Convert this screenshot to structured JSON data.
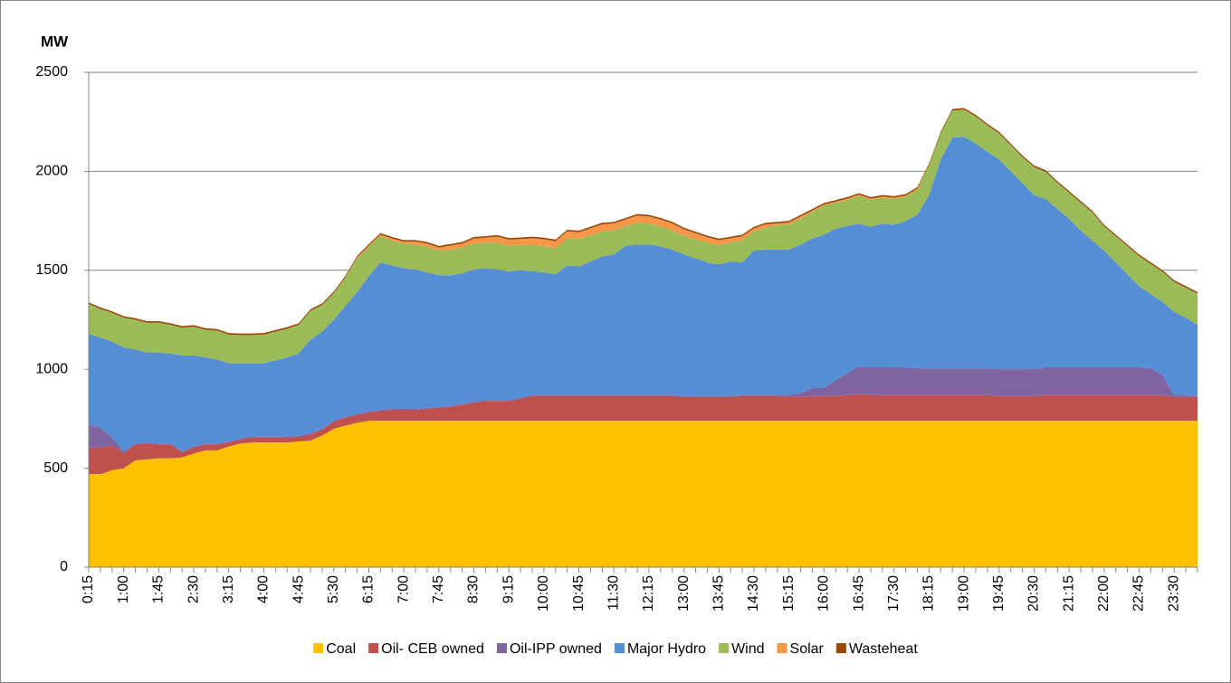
{
  "chart_data": {
    "type": "stacked-area",
    "y_label": "MW",
    "categories": [
      "0:15",
      null,
      null,
      "1:00",
      null,
      null,
      "1:45",
      null,
      null,
      "2:30",
      null,
      null,
      "3:15",
      null,
      null,
      "4:00",
      null,
      null,
      "4:45",
      null,
      null,
      "5:30",
      null,
      null,
      "6:15",
      null,
      null,
      "7:00",
      null,
      null,
      "7:45",
      null,
      null,
      "8:30",
      null,
      null,
      "9:15",
      null,
      null,
      "10:00",
      null,
      null,
      "10:45",
      null,
      null,
      "11:30",
      null,
      null,
      "12:15",
      null,
      null,
      "13:00",
      null,
      null,
      "13:45",
      null,
      null,
      "14:30",
      null,
      null,
      "15:15",
      null,
      null,
      "16:00",
      null,
      null,
      "16:45",
      null,
      null,
      "17:30",
      null,
      null,
      "18:15",
      null,
      null,
      "19:00",
      null,
      null,
      "19:45",
      null,
      null,
      "20:30",
      null,
      null,
      "21:15",
      null,
      null,
      "22:00",
      null,
      null,
      "22:45",
      null,
      null,
      "23:30",
      null,
      null
    ],
    "ylim": [
      0,
      2500
    ],
    "yticks": [
      0,
      500,
      1000,
      1500,
      2000,
      2500
    ],
    "grid": true,
    "legend": "bottom",
    "series": [
      {
        "name": "Coal",
        "color": "#FFC000",
        "values": [
          470,
          470,
          490,
          500,
          540,
          545,
          550,
          550,
          555,
          575,
          590,
          590,
          610,
          625,
          630,
          630,
          630,
          630,
          635,
          640,
          665,
          700,
          715,
          730,
          740,
          740,
          740,
          740,
          740,
          740,
          740,
          740,
          740,
          740,
          740,
          740,
          740,
          740,
          740,
          740,
          740,
          740,
          740,
          740,
          740,
          740,
          740,
          740,
          740,
          740,
          740,
          740,
          740,
          740,
          740,
          740,
          740,
          740,
          740,
          740,
          740,
          740,
          740,
          740,
          740,
          740,
          740,
          740,
          740,
          740,
          740,
          740,
          740,
          740,
          740,
          740,
          740,
          740,
          740,
          740,
          740,
          740,
          740,
          740,
          740,
          740,
          740,
          740,
          740,
          740,
          740,
          740,
          740,
          740,
          740,
          740
        ]
      },
      {
        "name": "Oil- CEB owned",
        "color": "#C0504D",
        "values": [
          130,
          135,
          125,
          75,
          80,
          80,
          70,
          70,
          25,
          30,
          30,
          30,
          20,
          20,
          25,
          25,
          25,
          25,
          25,
          30,
          30,
          35,
          40,
          40,
          40,
          50,
          55,
          55,
          55,
          60,
          65,
          70,
          80,
          90,
          100,
          100,
          100,
          110,
          125,
          125,
          125,
          125,
          125,
          125,
          125,
          125,
          125,
          125,
          125,
          125,
          125,
          120,
          120,
          120,
          120,
          120,
          125,
          125,
          125,
          125,
          120,
          120,
          125,
          125,
          125,
          130,
          135,
          130,
          130,
          130,
          130,
          130,
          130,
          130,
          130,
          130,
          130,
          130,
          125,
          125,
          125,
          125,
          130,
          130,
          130,
          130,
          130,
          130,
          130,
          130,
          130,
          130,
          130,
          120,
          120,
          120
        ]
      },
      {
        "name": "Oil-IPP owned",
        "color": "#8064A2",
        "values": [
          120,
          100,
          40,
          10,
          5,
          5,
          5,
          5,
          5,
          5,
          5,
          5,
          5,
          5,
          5,
          5,
          5,
          5,
          5,
          5,
          5,
          5,
          5,
          5,
          5,
          5,
          5,
          5,
          5,
          5,
          5,
          5,
          5,
          5,
          5,
          5,
          5,
          5,
          5,
          5,
          5,
          5,
          5,
          5,
          5,
          5,
          5,
          5,
          5,
          5,
          5,
          5,
          5,
          5,
          5,
          5,
          5,
          5,
          5,
          5,
          10,
          20,
          40,
          40,
          80,
          110,
          140,
          140,
          140,
          140,
          140,
          135,
          135,
          135,
          135,
          135,
          135,
          135,
          135,
          135,
          135,
          135,
          140,
          140,
          140,
          140,
          140,
          140,
          140,
          140,
          140,
          135,
          100,
          10,
          10,
          5
        ]
      },
      {
        "name": "Major Hydro",
        "color": "#558ED5",
        "values": [
          460,
          455,
          485,
          525,
          475,
          455,
          460,
          455,
          485,
          460,
          435,
          425,
          395,
          380,
          370,
          370,
          385,
          400,
          415,
          475,
          490,
          510,
          560,
          615,
          685,
          745,
          725,
          710,
          705,
          685,
          665,
          660,
          660,
          670,
          665,
          660,
          650,
          645,
          625,
          620,
          610,
          655,
          650,
          675,
          700,
          710,
          755,
          760,
          760,
          750,
          735,
          715,
          695,
          675,
          665,
          680,
          670,
          730,
          735,
          735,
          735,
          750,
          755,
          775,
          765,
          745,
          720,
          710,
          725,
          720,
          740,
          775,
          875,
          1055,
          1165,
          1170,
          1135,
          1095,
          1060,
          1000,
          940,
          880,
          850,
          800,
          750,
          690,
          640,
          590,
          530,
          470,
          410,
          375,
          370,
          420,
          390,
          360
        ]
      },
      {
        "name": "Wind",
        "color": "#9BBB59",
        "values": [
          150,
          145,
          145,
          150,
          150,
          150,
          150,
          145,
          140,
          145,
          140,
          145,
          145,
          143,
          143,
          145,
          145,
          145,
          145,
          145,
          135,
          135,
          145,
          170,
          150,
          135,
          125,
          125,
          125,
          130,
          125,
          130,
          130,
          130,
          130,
          135,
          130,
          128,
          132,
          132,
          132,
          137,
          137,
          132,
          127,
          122,
          97,
          112,
          107,
          102,
          97,
          97,
          97,
          102,
          97,
          97,
          112,
          97,
          112,
          122,
          127,
          132,
          137,
          147,
          132,
          132,
          142,
          137,
          132,
          132,
          122,
          127,
          152,
          132,
          137,
          137,
          137,
          132,
          132,
          132,
          132,
          142,
          137,
          132,
          132,
          142,
          142,
          122,
          132,
          142,
          152,
          152,
          152,
          152,
          152,
          157
        ]
      },
      {
        "name": "Solar",
        "color": "#F79646",
        "values": [
          0,
          0,
          0,
          0,
          0,
          0,
          0,
          0,
          0,
          0,
          0,
          0,
          0,
          0,
          0,
          0,
          0,
          0,
          0,
          0,
          0,
          0,
          0,
          5,
          5,
          5,
          10,
          10,
          15,
          15,
          15,
          20,
          20,
          25,
          25,
          30,
          30,
          30,
          35,
          35,
          35,
          35,
          35,
          35,
          35,
          35,
          35,
          35,
          35,
          35,
          35,
          30,
          30,
          25,
          25,
          20,
          20,
          15,
          15,
          10,
          10,
          10,
          5,
          5,
          5,
          5,
          5,
          5,
          5,
          5,
          5,
          5,
          0,
          0,
          0,
          0,
          0,
          0,
          0,
          0,
          0,
          0,
          0,
          0,
          0,
          0,
          0,
          0,
          0,
          0,
          0,
          0,
          0,
          0,
          0,
          0
        ]
      },
      {
        "name": "Wasteheat",
        "color": "#984807",
        "values": [
          8,
          8,
          8,
          8,
          8,
          8,
          8,
          8,
          8,
          8,
          8,
          8,
          8,
          8,
          8,
          8,
          8,
          8,
          8,
          8,
          8,
          8,
          8,
          8,
          8,
          8,
          8,
          8,
          8,
          8,
          8,
          8,
          8,
          8,
          8,
          8,
          8,
          8,
          8,
          8,
          8,
          8,
          8,
          8,
          8,
          8,
          8,
          8,
          8,
          8,
          8,
          8,
          8,
          8,
          8,
          8,
          8,
          8,
          8,
          8,
          8,
          8,
          8,
          8,
          8,
          8,
          8,
          8,
          8,
          8,
          8,
          8,
          8,
          8,
          8,
          8,
          8,
          8,
          8,
          8,
          8,
          8,
          8,
          8,
          8,
          8,
          8,
          8,
          8,
          8,
          8,
          8,
          8,
          8,
          8,
          8
        ]
      }
    ]
  }
}
